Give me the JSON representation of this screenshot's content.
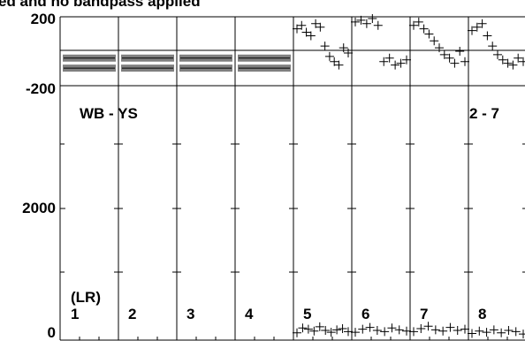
{
  "header_fragment": "ed and no bandpass applied",
  "top_panel": {
    "y_tick_labels": [
      "200",
      "-200"
    ],
    "baseline_label": "WB - YS",
    "pair_label": "2 - 7"
  },
  "bottom_panel": {
    "y_tick_labels": [
      "2000",
      "0"
    ],
    "polarization_label": "(LR)",
    "antenna_labels": [
      "1",
      "2",
      "3",
      "4",
      "5",
      "6",
      "7",
      "8"
    ]
  },
  "chart_data": [
    {
      "type": "scatter",
      "title": "ed and no bandpass applied",
      "subtitle_label": "WB - YS",
      "pair_label": "2 - 7",
      "ylim": [
        -200,
        200
      ],
      "panels": [
        {
          "antenna": "1",
          "values": [
            -40,
            -98
          ]
        },
        {
          "antenna": "2",
          "values": [
            -40,
            -98
          ]
        },
        {
          "antenna": "3",
          "values": [
            -40,
            -98
          ]
        },
        {
          "antenna": "4",
          "values": [
            -40,
            -98
          ]
        },
        {
          "antenna": "5",
          "values": [
            130,
            150,
            110,
            90,
            160,
            140,
            30,
            -30,
            -60,
            -80,
            20,
            -10
          ]
        },
        {
          "antenna": "6",
          "values": [
            170,
            180,
            160,
            190,
            150,
            -60,
            -40,
            -80,
            -70,
            -50
          ]
        },
        {
          "antenna": "7",
          "values": [
            150,
            170,
            130,
            100,
            60,
            20,
            -20,
            -40,
            -70,
            0,
            -60
          ]
        },
        {
          "antenna": "8",
          "values": [
            120,
            140,
            160,
            90,
            30,
            -20,
            -50,
            -70,
            -80,
            -40,
            -60
          ]
        }
      ]
    },
    {
      "type": "scatter",
      "polarization": "(LR)",
      "ylim": [
        0,
        4200
      ],
      "yticks": [
        0,
        2000
      ],
      "panels": [
        {
          "antenna": "1",
          "values": []
        },
        {
          "antenna": "2",
          "values": []
        },
        {
          "antenna": "3",
          "values": []
        },
        {
          "antenna": "4",
          "values": []
        },
        {
          "antenna": "5",
          "values": [
            120,
            200,
            180,
            150,
            220,
            160,
            130,
            170,
            190,
            140
          ]
        },
        {
          "antenna": "6",
          "values": [
            130,
            180,
            210,
            160,
            140,
            200,
            170,
            150
          ]
        },
        {
          "antenna": "7",
          "values": [
            140,
            190,
            230,
            170,
            150,
            210,
            160,
            180
          ]
        },
        {
          "antenna": "8",
          "values": [
            110,
            150,
            130,
            170,
            120,
            160,
            140,
            100
          ]
        }
      ]
    }
  ]
}
